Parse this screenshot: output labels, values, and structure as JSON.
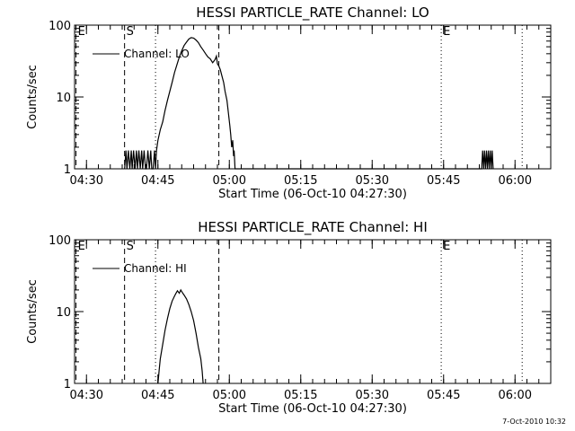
{
  "chart_data": [
    {
      "type": "line",
      "title": "HESSI PARTICLE_RATE Channel: LO",
      "ylabel": "Counts/sec",
      "xlabel": "Start Time (06-Oct-10 04:27:30)",
      "x_unit": "minutes since 04:27:30",
      "y_scale": "log",
      "ylim": [
        1,
        100
      ],
      "y_ticks": [
        {
          "v": 1,
          "label": "1"
        },
        {
          "v": 10,
          "label": "10"
        },
        {
          "v": 100,
          "label": "100"
        }
      ],
      "x_ticks": [
        {
          "v": 2.5,
          "label": "04:30"
        },
        {
          "v": 17.5,
          "label": "04:45"
        },
        {
          "v": 32.5,
          "label": "05:00"
        },
        {
          "v": 47.5,
          "label": "05:15"
        },
        {
          "v": 62.5,
          "label": "05:30"
        },
        {
          "v": 77.5,
          "label": "05:45"
        },
        {
          "v": 92.5,
          "label": "06:00"
        }
      ],
      "xlim": [
        0,
        100
      ],
      "legend": {
        "label": "Channel: LO",
        "position": "top-left"
      },
      "markers": [
        {
          "x": 0.3,
          "style": "dashed",
          "label": "E"
        },
        {
          "x": 10.5,
          "style": "dashed",
          "label": "S"
        },
        {
          "x": 17.0,
          "style": "dotted",
          "label": ""
        },
        {
          "x": 30.3,
          "style": "dashed",
          "label": ""
        },
        {
          "x": 77.0,
          "style": "dotted",
          "label": "E"
        },
        {
          "x": 94.0,
          "style": "dotted",
          "label": ""
        }
      ],
      "series": [
        {
          "name": "Channel: LO",
          "points": [
            [
              10.5,
              1
            ],
            [
              10.8,
              1.8
            ],
            [
              11.0,
              1
            ],
            [
              11.3,
              1.8
            ],
            [
              11.6,
              1
            ],
            [
              11.9,
              1.8
            ],
            [
              12.1,
              1
            ],
            [
              12.4,
              1.8
            ],
            [
              12.7,
              1
            ],
            [
              13.0,
              1.8
            ],
            [
              13.2,
              1
            ],
            [
              13.5,
              1.8
            ],
            [
              13.8,
              1
            ],
            [
              14.1,
              1.8
            ],
            [
              14.3,
              1
            ],
            [
              14.6,
              1.8
            ],
            [
              14.9,
              1
            ],
            [
              15.1,
              1
            ],
            [
              15.4,
              1.8
            ],
            [
              15.7,
              1
            ],
            [
              16.0,
              1.8
            ],
            [
              16.2,
              1
            ],
            [
              16.5,
              1
            ],
            [
              16.8,
              1.8
            ],
            [
              17.0,
              1
            ],
            [
              17.2,
              1.8
            ],
            [
              17.5,
              2.5
            ],
            [
              18.0,
              3.5
            ],
            [
              18.5,
              4.5
            ],
            [
              19.0,
              6.5
            ],
            [
              19.5,
              9
            ],
            [
              20.0,
              12
            ],
            [
              20.5,
              16
            ],
            [
              21.0,
              22
            ],
            [
              21.5,
              28
            ],
            [
              22.0,
              36
            ],
            [
              22.5,
              44
            ],
            [
              23.0,
              52
            ],
            [
              23.5,
              58
            ],
            [
              24.0,
              64
            ],
            [
              24.5,
              67
            ],
            [
              25.0,
              66
            ],
            [
              25.5,
              62
            ],
            [
              26.0,
              57
            ],
            [
              26.5,
              50
            ],
            [
              27.0,
              45
            ],
            [
              27.5,
              40
            ],
            [
              28.0,
              36
            ],
            [
              28.5,
              34
            ],
            [
              29.0,
              30
            ],
            [
              29.5,
              33
            ],
            [
              29.8,
              37
            ],
            [
              30.0,
              29
            ],
            [
              30.3,
              27
            ],
            [
              30.6,
              24
            ],
            [
              31.0,
              19
            ],
            [
              31.3,
              16
            ],
            [
              31.6,
              12
            ],
            [
              32.0,
              9
            ],
            [
              32.3,
              6
            ],
            [
              32.6,
              4
            ],
            [
              32.8,
              3
            ],
            [
              33.0,
              2
            ],
            [
              33.2,
              2.5
            ],
            [
              33.4,
              1.5
            ],
            [
              33.5,
              1.8
            ],
            [
              33.7,
              1
            ],
            [
              85.5,
              1
            ],
            [
              85.7,
              1.8
            ],
            [
              85.9,
              1
            ],
            [
              86.1,
              1.8
            ],
            [
              86.3,
              1
            ],
            [
              86.5,
              1.8
            ],
            [
              86.7,
              1
            ],
            [
              86.9,
              1.8
            ],
            [
              87.1,
              1
            ],
            [
              87.3,
              1.8
            ],
            [
              87.5,
              1
            ],
            [
              87.7,
              1.8
            ],
            [
              87.9,
              1
            ]
          ]
        }
      ]
    },
    {
      "type": "line",
      "title": "HESSI PARTICLE_RATE Channel: HI",
      "ylabel": "Counts/sec",
      "xlabel": "Start Time (06-Oct-10 04:27:30)",
      "x_unit": "minutes since 04:27:30",
      "y_scale": "log",
      "ylim": [
        1,
        100
      ],
      "y_ticks": [
        {
          "v": 1,
          "label": "1"
        },
        {
          "v": 10,
          "label": "10"
        },
        {
          "v": 100,
          "label": "100"
        }
      ],
      "x_ticks": [
        {
          "v": 2.5,
          "label": "04:30"
        },
        {
          "v": 17.5,
          "label": "04:45"
        },
        {
          "v": 32.5,
          "label": "05:00"
        },
        {
          "v": 47.5,
          "label": "05:15"
        },
        {
          "v": 62.5,
          "label": "05:30"
        },
        {
          "v": 77.5,
          "label": "05:45"
        },
        {
          "v": 92.5,
          "label": "06:00"
        }
      ],
      "xlim": [
        0,
        100
      ],
      "legend": {
        "label": "Channel: HI",
        "position": "top-left"
      },
      "markers": [
        {
          "x": 0.3,
          "style": "dashed",
          "label": "E"
        },
        {
          "x": 10.5,
          "style": "dashed",
          "label": "S"
        },
        {
          "x": 17.0,
          "style": "dotted",
          "label": ""
        },
        {
          "x": 30.3,
          "style": "dashed",
          "label": ""
        },
        {
          "x": 77.0,
          "style": "dotted",
          "label": "E"
        },
        {
          "x": 94.0,
          "style": "dotted",
          "label": ""
        }
      ],
      "series": [
        {
          "name": "Channel: HI",
          "points": [
            [
              17.5,
              1
            ],
            [
              17.8,
              1.6
            ],
            [
              18.0,
              2.2
            ],
            [
              18.5,
              3.5
            ],
            [
              19.0,
              5.5
            ],
            [
              19.5,
              8
            ],
            [
              20.0,
              11
            ],
            [
              20.5,
              14
            ],
            [
              21.0,
              16.5
            ],
            [
              21.3,
              18
            ],
            [
              21.6,
              19.5
            ],
            [
              22.0,
              18
            ],
            [
              22.3,
              20
            ],
            [
              22.6,
              18.5
            ],
            [
              23.0,
              17
            ],
            [
              23.5,
              15
            ],
            [
              24.0,
              12.5
            ],
            [
              24.5,
              10
            ],
            [
              25.0,
              7.5
            ],
            [
              25.5,
              5
            ],
            [
              26.0,
              3.2
            ],
            [
              26.5,
              2.2
            ],
            [
              26.8,
              1.5
            ],
            [
              27.0,
              1
            ]
          ]
        }
      ]
    }
  ],
  "footer": {
    "timestamp": "7-Oct-2010 10:32"
  }
}
